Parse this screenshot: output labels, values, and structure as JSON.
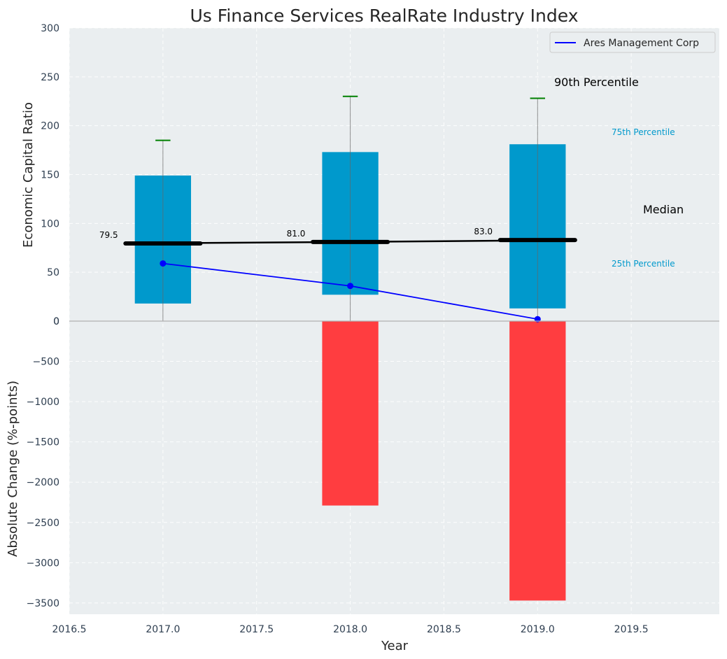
{
  "chart_data": {
    "type": "bar",
    "title": "Us Finance Services RealRate Industry Index",
    "xlabel": "Year",
    "x_ticks": [
      "2016.5",
      "2017.0",
      "2017.5",
      "2018.0",
      "2018.5",
      "2019.0",
      "2019.5"
    ],
    "xlim": [
      2016.5,
      2019.97
    ],
    "top_panel": {
      "ylabel": "Economic Capital Ratio",
      "ylim": [
        0,
        300
      ],
      "y_ticks": [
        "0",
        "50",
        "100",
        "150",
        "200",
        "250",
        "300"
      ],
      "years": [
        2017,
        2018,
        2019
      ],
      "p25": [
        18,
        27,
        13
      ],
      "p75": [
        149,
        173,
        181
      ],
      "p90": [
        185,
        230,
        228
      ],
      "median": [
        79.5,
        81.0,
        83.0
      ],
      "median_labels": [
        "79.5",
        "81.0",
        "83.0"
      ],
      "company": {
        "name": "Ares Management Corp",
        "values": [
          59,
          36,
          2
        ],
        "color": "#0000ff"
      },
      "legend_entry": "Ares Management Corp",
      "annotations": {
        "p90": "90th Percentile",
        "p75": "75th Percentile",
        "median": "Median",
        "p25": "25th Percentile"
      },
      "box_color": "#0099cc",
      "whisker_cap_color": "#008000"
    },
    "bottom_panel": {
      "ylabel": "Absolute Change (%-points)",
      "ylim": [
        -3640,
        0
      ],
      "y_ticks": [
        "0",
        "−500",
        "−1000",
        "−1500",
        "−2000",
        "−2500",
        "−3000",
        "−3500"
      ],
      "years": [
        2018,
        2019
      ],
      "values": [
        -2290,
        -3470
      ],
      "bar_color": "#ff3d40"
    }
  }
}
